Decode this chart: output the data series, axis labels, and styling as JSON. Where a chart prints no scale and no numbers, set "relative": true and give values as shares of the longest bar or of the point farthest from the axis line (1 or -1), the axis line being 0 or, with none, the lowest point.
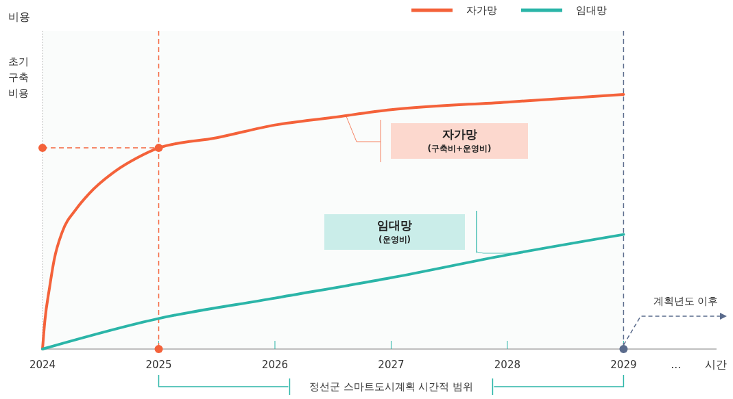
{
  "chart_data": {
    "type": "line",
    "relative": true,
    "xlabel": "시간",
    "legend": "top right",
    "xlim": [
      2024,
      2029.8
    ],
    "xticks": [
      2024,
      2025,
      2026,
      2027,
      2028,
      2029,
      {
        "value": 2029.45,
        "label": "…"
      }
    ],
    "series": [
      {
        "name": "자가망",
        "color": "#f4623a",
        "x": [
          2024,
          2024.02,
          2024.06,
          2024.1,
          2024.17,
          2024.29,
          2024.4,
          2024.63,
          2024.81,
          2025,
          2025.5,
          2026,
          2026.5,
          2027,
          2028,
          2029
        ],
        "values": [
          0,
          0.11,
          0.24,
          0.35,
          0.46,
          0.55,
          0.61,
          0.7,
          0.75,
          0.79,
          0.83,
          0.88,
          0.91,
          0.94,
          0.97,
          1
        ]
      },
      {
        "name": "임대망",
        "color": "#2bb5a8",
        "x": [
          2024,
          2025,
          2026,
          2027,
          2028,
          2029
        ],
        "values": [
          0,
          0.12,
          0.2,
          0.28,
          0.37,
          0.45
        ]
      },
      {
        "type": "scatter",
        "x": [
          2024,
          2025,
          2025,
          2029
        ],
        "values": [
          0.79,
          0.79,
          0,
          0
        ],
        "colors": [
          "#f4623a",
          "#f4623a",
          "#f4623a",
          "#5a6b8c"
        ]
      }
    ],
    "ref_lines": [
      {
        "axis": "x",
        "value": 2025,
        "color": "#f4623a",
        "line_style": "dashed"
      },
      {
        "axis": "y",
        "value": 0.79,
        "color": "#f4623a",
        "line_style": "dashed"
      },
      {
        "axis": "x",
        "value": 2029,
        "color": "#5a6b8c",
        "line_style": "dashed"
      }
    ],
    "annotations": [
      "비용",
      "초기 구축 비용",
      "계획년도 이후",
      "자가망\n(구축비+운영비)",
      "임대망\n(운영비)",
      "정선군 스마트도시계획 시간적 범위"
    ]
  }
}
